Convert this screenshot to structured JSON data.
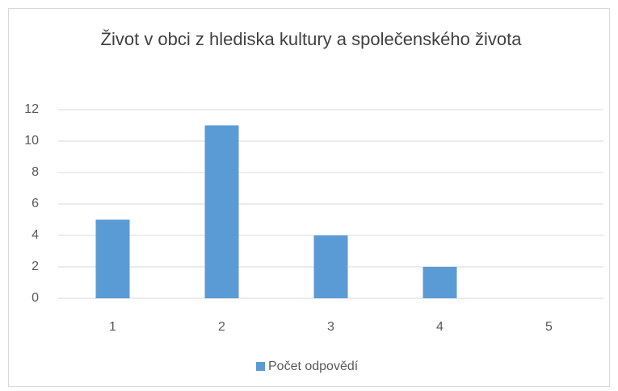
{
  "chart_data": {
    "type": "bar",
    "title": "Život v obci z hlediska kultury a společenského života",
    "categories": [
      "1",
      "2",
      "3",
      "4",
      "5"
    ],
    "series": [
      {
        "name": "Počet odpovědí",
        "color": "#5b9bd5",
        "values": [
          5,
          11,
          4,
          2,
          0
        ]
      }
    ],
    "ylim": [
      0,
      12
    ],
    "yticks": [
      0,
      2,
      4,
      6,
      8,
      10,
      12
    ],
    "grid": true,
    "legend": "bottom"
  }
}
